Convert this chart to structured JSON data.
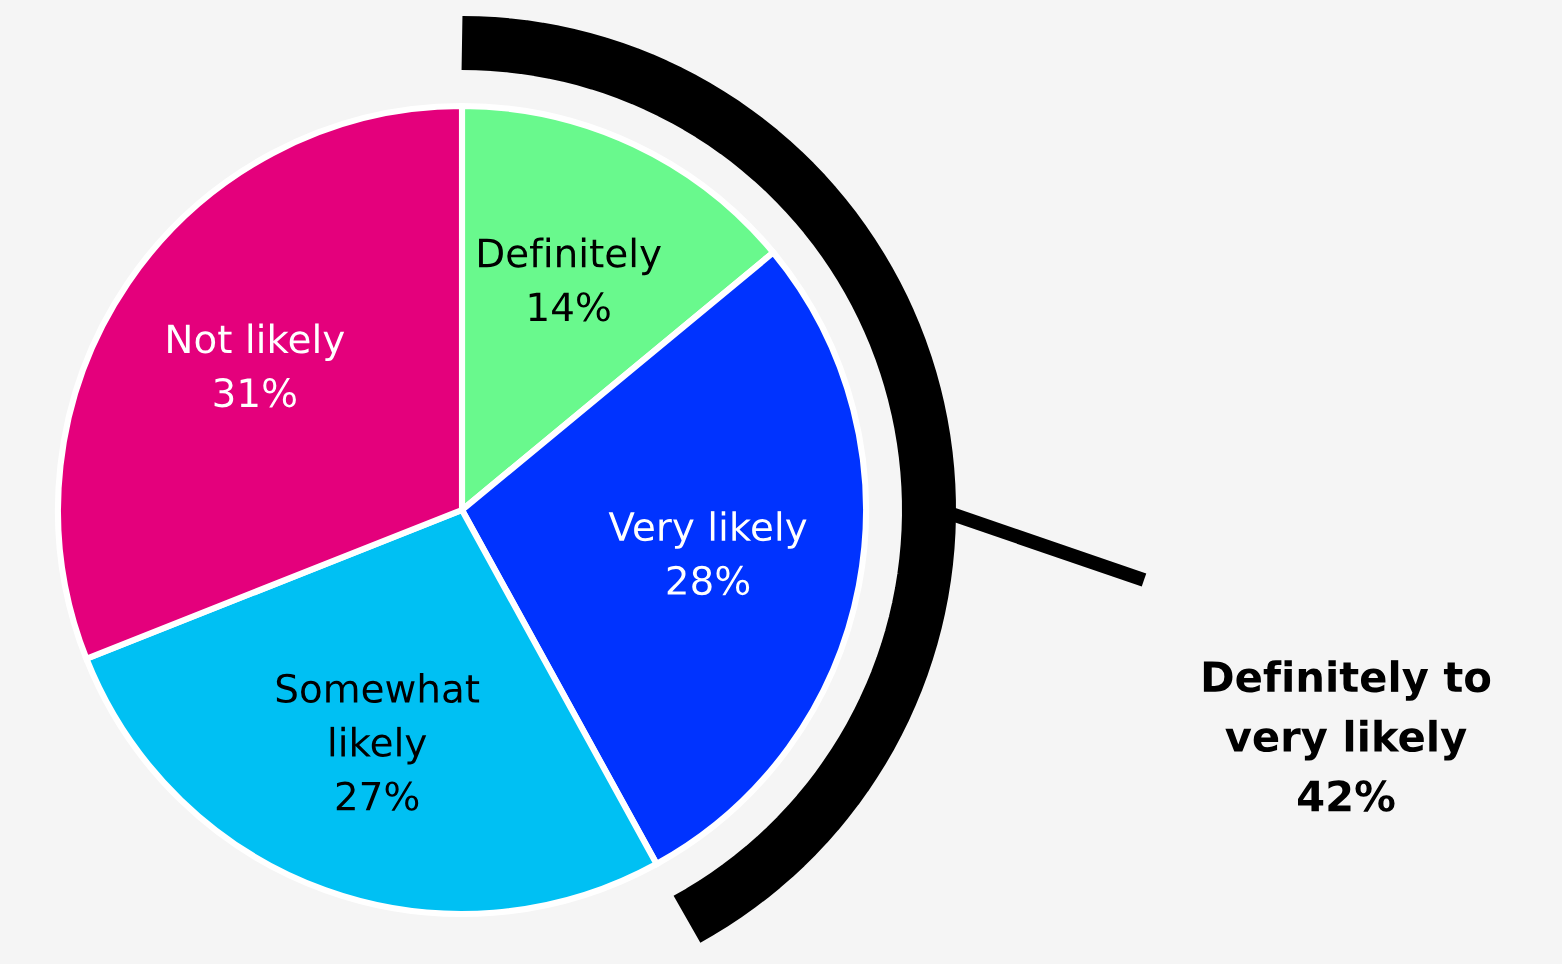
{
  "chart_data": {
    "type": "pie",
    "categories": [
      "Definitely",
      "Very likely",
      "Somewhat likely",
      "Not likely"
    ],
    "values": [
      14,
      28,
      27,
      31
    ],
    "colors": [
      "#69f98d",
      "#0033ff",
      "#00c0f3",
      "#e4007c"
    ],
    "value_labels": [
      "14%",
      "28%",
      "27%",
      "31%"
    ],
    "annotations": [
      "Definitely to very likely 42%"
    ]
  }
}
